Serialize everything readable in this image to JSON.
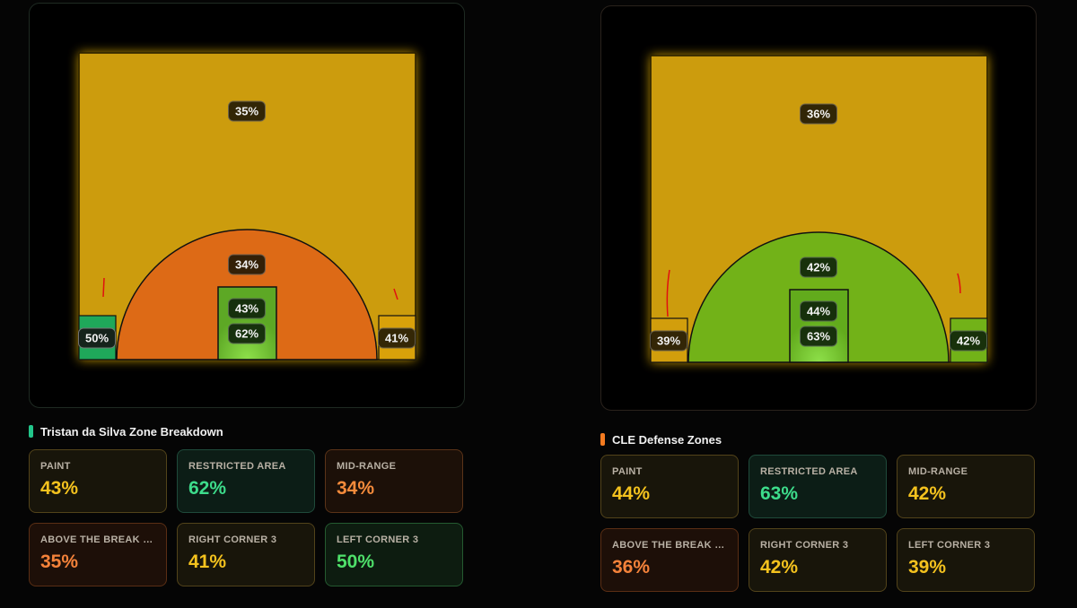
{
  "colors": {
    "court_yellow": "#cc9c08",
    "orange_zone": "#dd6a16",
    "lime_zone": "#72b218",
    "paint_green": "#5da825",
    "corner_green": "#1fa85a",
    "accent_green": "#22c58a",
    "accent_orange": "#f47b20"
  },
  "panels": [
    {
      "title": "Tristan da Silva Zone Breakdown",
      "accent": "#22c58a",
      "court": {
        "above_break": "35%",
        "mid_range": "34%",
        "paint": "43%",
        "restricted": "62%",
        "left_corner": "50%",
        "right_corner": "41%"
      },
      "cards": [
        {
          "label": "PAINT",
          "value": "43%",
          "tone": "c-yellow"
        },
        {
          "label": "RESTRICTED AREA",
          "value": "62%",
          "tone": "c-green"
        },
        {
          "label": "MID-RANGE",
          "value": "34%",
          "tone": "c-orange"
        },
        {
          "label": "ABOVE THE BREAK (A...",
          "value": "35%",
          "tone": "c-orange-red"
        },
        {
          "label": "RIGHT CORNER 3",
          "value": "41%",
          "tone": "c-yellow"
        },
        {
          "label": "LEFT CORNER 3",
          "value": "50%",
          "tone": "c-bright-green"
        }
      ]
    },
    {
      "title": "CLE Defense Zones",
      "accent": "#f47b20",
      "court": {
        "above_break": "36%",
        "mid_range": "42%",
        "paint": "44%",
        "restricted": "63%",
        "left_corner": "39%",
        "right_corner": "42%"
      },
      "cards": [
        {
          "label": "PAINT",
          "value": "44%",
          "tone": "c-yellow"
        },
        {
          "label": "RESTRICTED AREA",
          "value": "63%",
          "tone": "c-green"
        },
        {
          "label": "MID-RANGE",
          "value": "42%",
          "tone": "c-yellow"
        },
        {
          "label": "ABOVE THE BREAK (A...",
          "value": "36%",
          "tone": "c-orange-red"
        },
        {
          "label": "RIGHT CORNER 3",
          "value": "42%",
          "tone": "c-yellow"
        },
        {
          "label": "LEFT CORNER 3",
          "value": "39%",
          "tone": "c-yellow"
        }
      ]
    }
  ]
}
